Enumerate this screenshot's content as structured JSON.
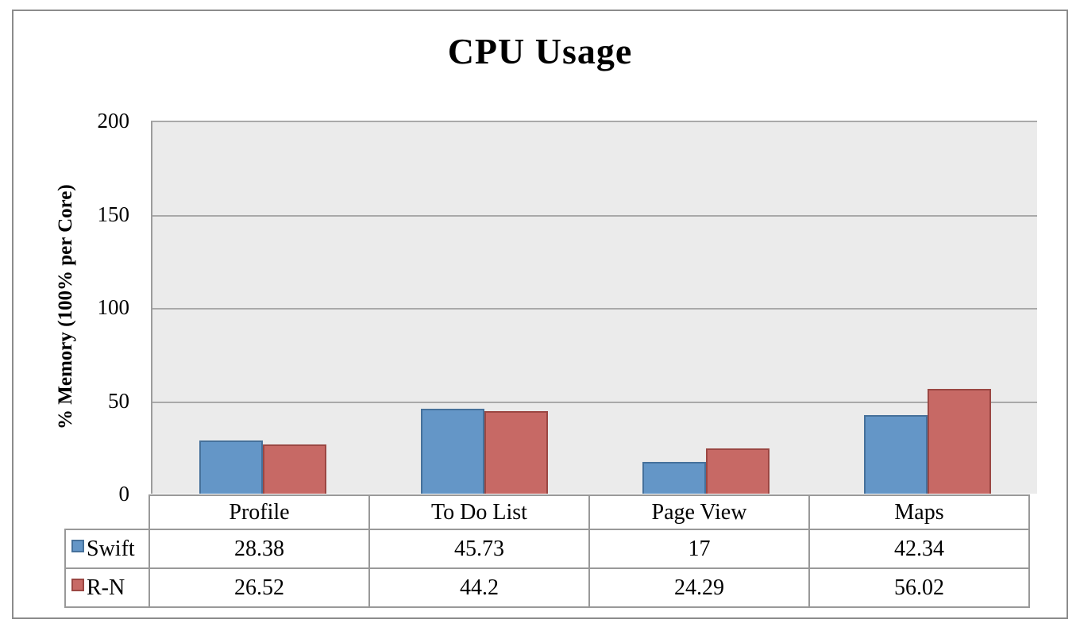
{
  "window": {
    "background": "#FFFFFF",
    "frame_border_color": "#8C8C8C"
  },
  "chart_data": {
    "type": "bar",
    "title": "CPU Usage",
    "xlabel": "",
    "ylabel": "% Memory (100% per Core)",
    "categories": [
      "Profile",
      "To Do List",
      "Page View",
      "Maps"
    ],
    "series": [
      {
        "name": "Swift",
        "fill": "#6496C7",
        "border": "#46719B",
        "values": [
          28.38,
          45.73,
          17,
          42.34
        ]
      },
      {
        "name": "R-N",
        "fill": "#C76965",
        "border": "#9B4743",
        "values": [
          26.52,
          44.2,
          24.29,
          56.02
        ]
      }
    ],
    "ylim": [
      0,
      200
    ],
    "yticks": [
      0,
      50,
      100,
      150,
      200
    ],
    "grid": true,
    "grid_color": "#A9A9A9",
    "plot_background": "#EBEBEB",
    "table_border_color": "#999999",
    "legend_position": "table-left"
  }
}
